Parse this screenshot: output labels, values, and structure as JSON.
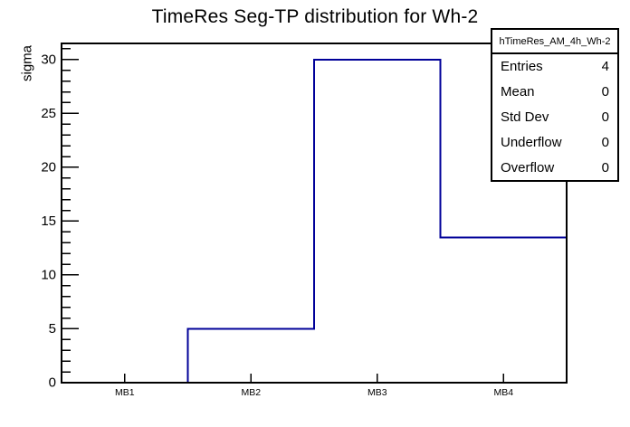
{
  "chart_data": {
    "type": "bar",
    "subtype": "root-step-histogram",
    "title": "TimeRes Seg-TP distribution for Wh-2",
    "ylabel": "sigma",
    "xlabel": "",
    "categories": [
      "MB1",
      "MB2",
      "MB3",
      "MB4"
    ],
    "values": [
      0,
      5,
      30,
      13.5
    ],
    "ylim": [
      0,
      31.5
    ],
    "y_major_ticks": [
      0,
      5,
      10,
      15,
      20,
      25,
      30
    ],
    "y_minor_step": 1,
    "grid": false,
    "legend_position": "none",
    "line_color": "#000099",
    "frame_color": "#000000",
    "background_color": "#ffffff",
    "stats_box": {
      "header": "hTimeRes_AM_4h_Wh-2",
      "rows": [
        {
          "label": "Entries",
          "value": "4"
        },
        {
          "label": "Mean",
          "value": "0"
        },
        {
          "label": "Std Dev",
          "value": "0"
        },
        {
          "label": "Underflow",
          "value": "0"
        },
        {
          "label": "Overflow",
          "value": "0"
        }
      ]
    }
  }
}
